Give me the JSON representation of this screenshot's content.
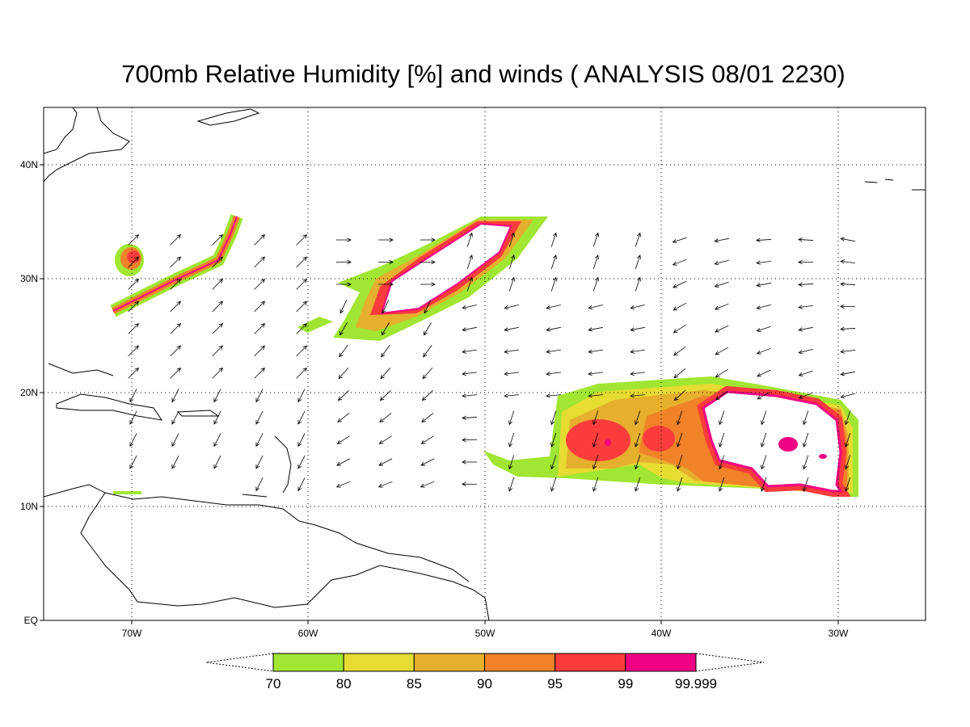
{
  "title": "700mb Relative Humidity [%] and winds ( ANALYSIS 08/01 2230)",
  "map": {
    "lon_ticks": [
      "70W",
      "60W",
      "50W",
      "40W",
      "30W"
    ],
    "lat_ticks": [
      "40N",
      "30N",
      "20N",
      "10N",
      "EQ"
    ]
  },
  "colorbar": {
    "levels": [
      70,
      80,
      85,
      90,
      95,
      99,
      99.999
    ],
    "colors": [
      "#a0e632",
      "#e6dc32",
      "#e6af2d",
      "#f08228",
      "#fa3c3c",
      "#f00082"
    ]
  }
}
